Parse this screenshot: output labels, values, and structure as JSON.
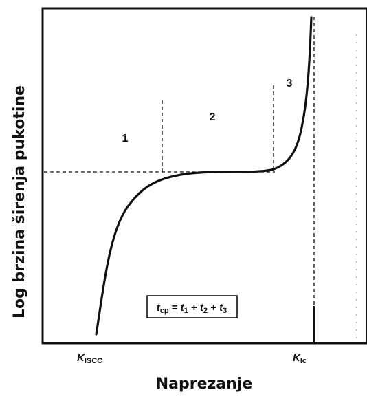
{
  "labels": {
    "y_axis": "Log brzina širenja pukotine",
    "x_axis": "Naprezanje"
  },
  "ticks": {
    "kiscc_symbol": "K",
    "kiscc_sub": "ISCC",
    "kic_symbol": "K",
    "kic_sub": "Ic"
  },
  "regions": {
    "r1": "1",
    "r2": "2",
    "r3": "3"
  },
  "formula": {
    "t": "t",
    "cp": "cp",
    "eq": " = ",
    "t1": "t",
    "s1": "1",
    "plus1": " + ",
    "t2": "t",
    "s2": "2",
    "plus2": " + ",
    "t3": "t",
    "s3": "3"
  },
  "colors": {
    "ink": "#111111",
    "background": "#ffffff"
  }
}
